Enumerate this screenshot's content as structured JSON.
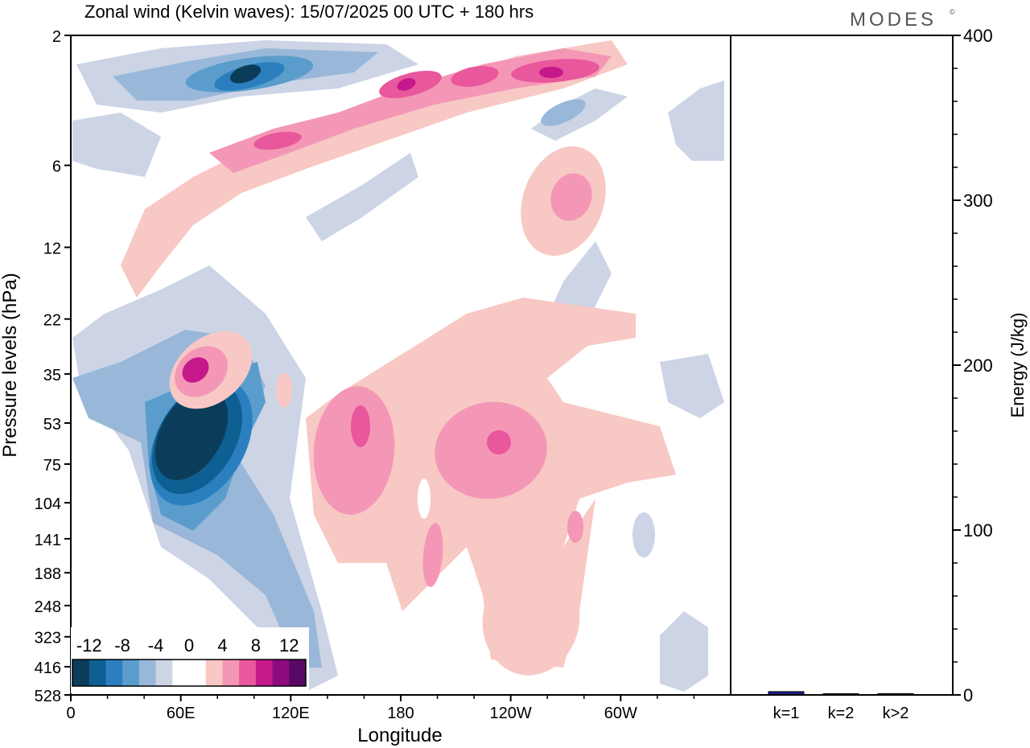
{
  "title": "Zonal wind (Kelvin waves):  15/07/2025  00 UTC  + 180 hrs",
  "brand": "MODES",
  "brand_mark": "©",
  "chart_data": [
    {
      "type": "heatmap",
      "title": "Zonal wind (Kelvin waves):  15/07/2025  00 UTC  + 180 hrs",
      "xlabel": "Longitude",
      "ylabel": "Pressure levels (hPa)",
      "x_ticks": [
        "0",
        "60E",
        "120E",
        "180",
        "120W",
        "60W"
      ],
      "y_ticks": [
        "2",
        "6",
        "12",
        "22",
        "35",
        "53",
        "75",
        "104",
        "141",
        "188",
        "248",
        "323",
        "416",
        "528"
      ],
      "colorbar": {
        "labels": [
          "-12",
          "-8",
          "-4",
          "0",
          "4",
          "8",
          "12"
        ],
        "levels": [
          -14,
          -12,
          -10,
          -8,
          -6,
          -4,
          -2,
          2,
          4,
          6,
          8,
          10,
          12,
          14
        ],
        "colors": [
          "#0b3d5a",
          "#0e5f92",
          "#2b7fbf",
          "#5a9dcc",
          "#99b8d9",
          "#ccd4e6",
          "#ffffff",
          "#ffffff",
          "#f8c8c4",
          "#f497b6",
          "#e9579d",
          "#c5188a",
          "#8e0b7e",
          "#5a0868"
        ]
      },
      "features": [
        {
          "sign": "negative",
          "peak": -14,
          "lon": 75,
          "p": 141
        },
        {
          "sign": "negative",
          "peak": -12,
          "lon": 98,
          "p": 5
        },
        {
          "sign": "positive",
          "peak": 8,
          "lon": 68,
          "p": 88
        },
        {
          "sign": "positive",
          "peak": 8,
          "lon": 165,
          "p": 145
        },
        {
          "sign": "positive",
          "peak": 8,
          "lon": 235,
          "p": 150
        },
        {
          "sign": "positive",
          "peak": 10,
          "lon": 180,
          "p": 6
        },
        {
          "sign": "positive",
          "peak": 10,
          "lon": 260,
          "p": 5
        }
      ]
    },
    {
      "type": "bar",
      "title": "",
      "xlabel": "",
      "ylabel": "Energy (J/kg)",
      "categories": [
        "k=1",
        "k=2",
        "k>2"
      ],
      "values": [
        2,
        0.5,
        0.8
      ],
      "ylim": [
        0,
        400
      ],
      "y_ticks": [
        "0",
        "100",
        "200",
        "300",
        "400"
      ],
      "bar_color": "#1a1a8c"
    }
  ]
}
